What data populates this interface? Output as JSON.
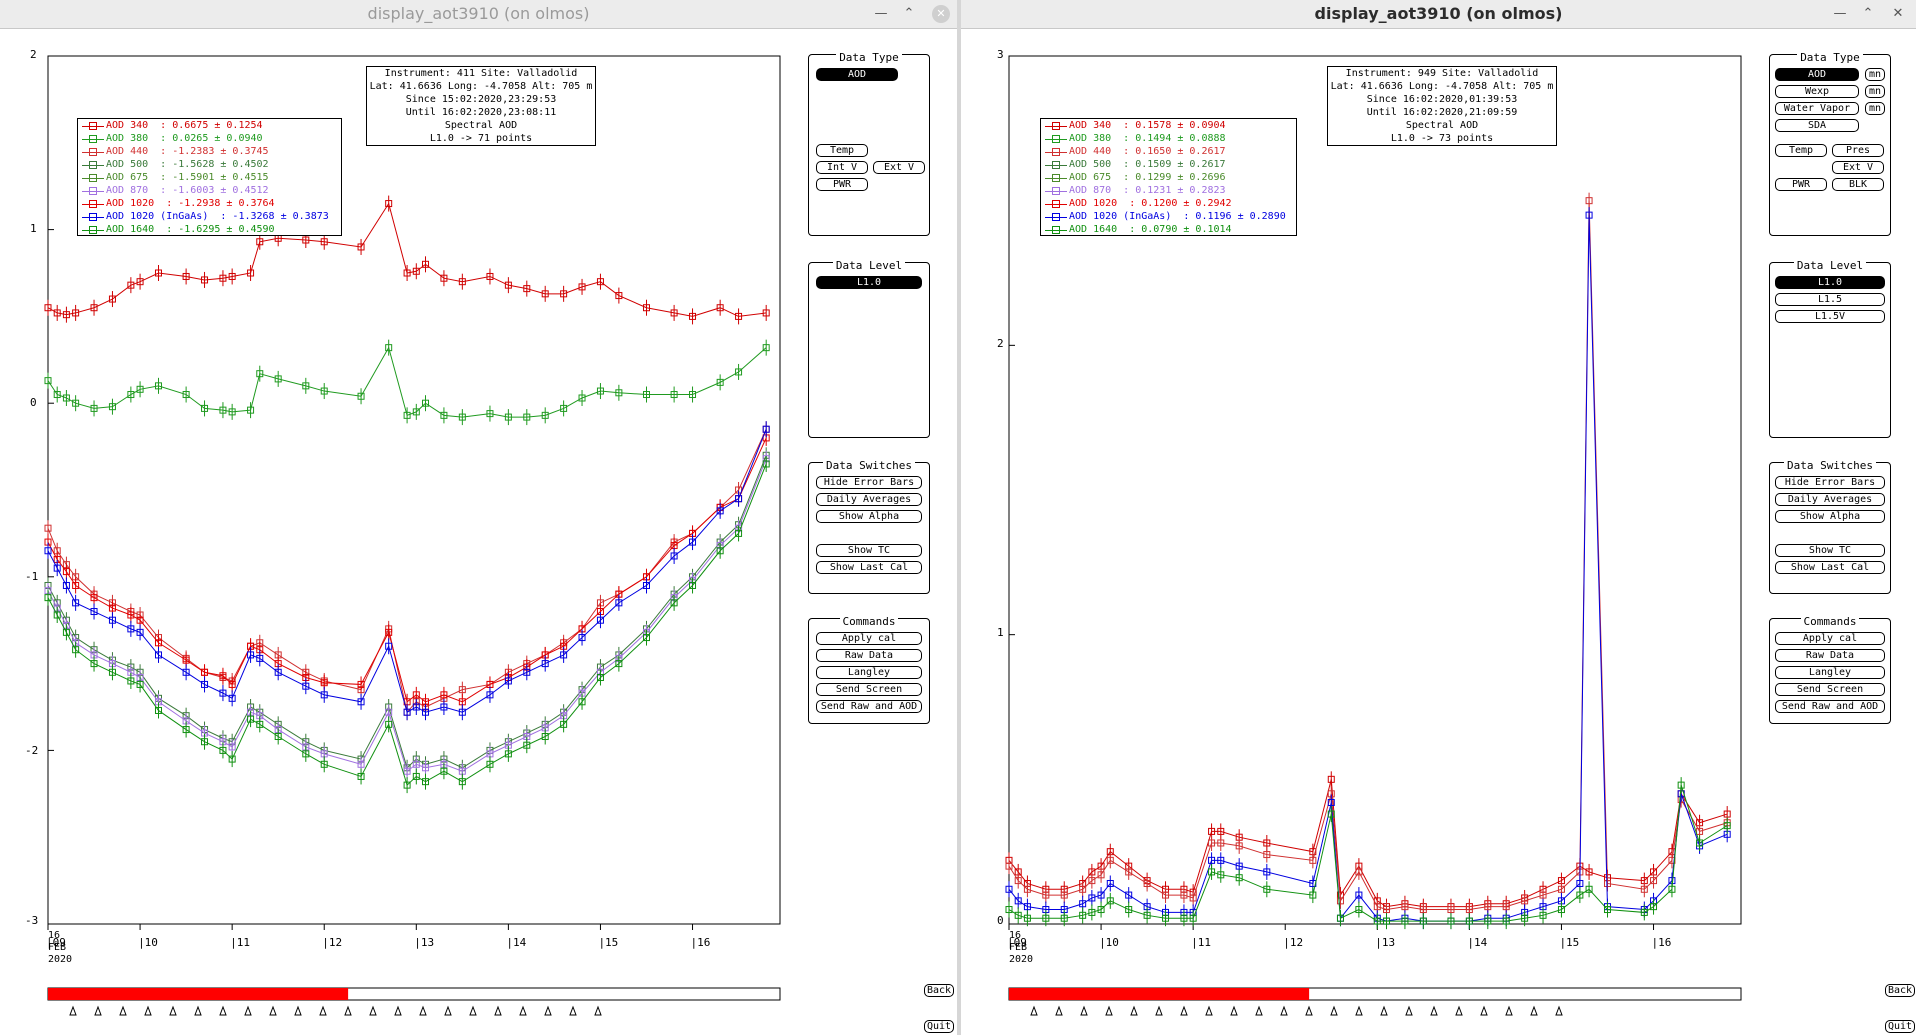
{
  "windows": [
    {
      "title": "display_aot3910 (on olmos)",
      "info": [
        "Instrument: 411 Site: Valladolid",
        "Lat: 41.6636 Long: -4.7058 Alt: 705 m",
        "Since 15:02:2020,23:29:53",
        "Until 16:02:2020,23:08:11",
        "Spectral AOD",
        "L1.0 -> 71 points"
      ],
      "legend": [
        {
          "label": "AOD 340  : 0.6675 ± 0.1254",
          "color": "#d00000"
        },
        {
          "label": "AOD 380  : 0.0265 ± 0.0940",
          "color": "#1f9a1f"
        },
        {
          "label": "AOD 440  : -1.2383 ± 0.3745",
          "color": "#d03030"
        },
        {
          "label": "AOD 500  : -1.5628 ± 0.4502",
          "color": "#3a7a3a"
        },
        {
          "label": "AOD 675  : -1.5901 ± 0.4515",
          "color": "#4a8a2a"
        },
        {
          "label": "AOD 870  : -1.6003 ± 0.4512",
          "color": "#a070e0"
        },
        {
          "label": "AOD 1020  : -1.2938 ± 0.3764",
          "color": "#e00000"
        },
        {
          "label": "AOD 1020 (InGaAs)  : -1.3268 ± 0.3873",
          "color": "#0000e0"
        },
        {
          "label": "AOD 1640  : -1.6295 ± 0.4590",
          "color": "#109010"
        }
      ],
      "y_ticks": [
        "2",
        "1",
        "0",
        "-1",
        "-2",
        "-3"
      ],
      "x_ticks": [
        "|09",
        "|10",
        "|11",
        "|12",
        "|13",
        "|14",
        "|15",
        "|16"
      ],
      "date_label": [
        "16",
        "FEB",
        "2020"
      ],
      "data_type_buttons": [
        "AOD",
        "Temp",
        "Int V",
        "Ext V",
        "PWR"
      ],
      "data_level_buttons": [
        "L1.0"
      ]
    },
    {
      "title": "display_aot3910 (on olmos)",
      "info": [
        "Instrument: 949 Site: Valladolid",
        "Lat: 41.6636 Long: -4.7058 Alt: 705 m",
        "Since 16:02:2020,01:39:53",
        "Until 16:02:2020,21:09:59",
        "Spectral AOD",
        "L1.0 -> 73 points"
      ],
      "legend": [
        {
          "label": "AOD 340  : 0.1578 ± 0.0904",
          "color": "#d00000"
        },
        {
          "label": "AOD 380  : 0.1494 ± 0.0888",
          "color": "#1f9a1f"
        },
        {
          "label": "AOD 440  : 0.1650 ± 0.2617",
          "color": "#d03030"
        },
        {
          "label": "AOD 500  : 0.1509 ± 0.2617",
          "color": "#3a7a3a"
        },
        {
          "label": "AOD 675  : 0.1299 ± 0.2696",
          "color": "#4a8a2a"
        },
        {
          "label": "AOD 870  : 0.1231 ± 0.2823",
          "color": "#a070e0"
        },
        {
          "label": "AOD 1020  : 0.1200 ± 0.2942",
          "color": "#e00000"
        },
        {
          "label": "AOD 1020 (InGaAs)  : 0.1196 ± 0.2890",
          "color": "#0000e0"
        },
        {
          "label": "AOD 1640  : 0.0790 ± 0.1014",
          "color": "#109010"
        }
      ],
      "y_ticks": [
        "3",
        "2",
        "1",
        "0"
      ],
      "x_ticks": [
        "|09",
        "|10",
        "|11",
        "|12",
        "|13",
        "|14",
        "|15",
        "|16"
      ],
      "date_label": [
        "16",
        "FEB",
        "2020"
      ],
      "data_type_buttons": [
        "AOD",
        "Wexp",
        "Water Vapor",
        "SDA",
        "Temp",
        "Pres",
        "Ext V",
        "PWR",
        "BLK"
      ],
      "mn_label": "mn",
      "data_level_buttons": [
        "L1.0",
        "L1.5",
        "L1.5V"
      ]
    }
  ],
  "panels": {
    "data_type": "Data Type",
    "data_level": "Data Level",
    "data_switches": "Data Switches",
    "commands": "Commands"
  },
  "switches": [
    "Hide Error Bars",
    "Daily Averages",
    "Show Alpha",
    "Show TC",
    "Show Last Cal"
  ],
  "commands": [
    "Apply cal",
    "Raw Data",
    "Langley",
    "Send Screen",
    "Send Raw and AOD"
  ],
  "nav": {
    "back": "Back",
    "quit": "Quit"
  },
  "colors": {
    "progress": "#ff0000",
    "plot_border": "#000000"
  },
  "chart_data": [
    {
      "type": "line",
      "title": "",
      "ylim": [
        -3,
        2
      ],
      "x_days": [
        "09",
        "10",
        "11",
        "12",
        "13",
        "14",
        "15",
        "16"
      ],
      "x": [
        9.0,
        9.1,
        9.2,
        9.3,
        9.5,
        9.7,
        9.9,
        10.0,
        10.2,
        10.5,
        10.7,
        10.9,
        11.0,
        11.2,
        11.3,
        11.5,
        11.8,
        12.0,
        12.4,
        12.7,
        12.9,
        13.0,
        13.1,
        13.3,
        13.5,
        13.8,
        14.0,
        14.2,
        14.4,
        14.6,
        14.8,
        15.0,
        15.2,
        15.5,
        15.8,
        16.0,
        16.3,
        16.5,
        16.8
      ],
      "series": [
        {
          "name": "AOD 340",
          "color": "#d00000",
          "values": [
            0.55,
            0.52,
            0.51,
            0.52,
            0.55,
            0.6,
            0.68,
            0.7,
            0.75,
            0.73,
            0.71,
            0.72,
            0.73,
            0.75,
            0.93,
            0.95,
            0.94,
            0.93,
            0.9,
            1.15,
            0.75,
            0.76,
            0.8,
            0.72,
            0.7,
            0.73,
            0.68,
            0.66,
            0.63,
            0.63,
            0.67,
            0.7,
            0.62,
            0.55,
            0.52,
            0.5,
            0.55,
            0.5,
            0.52
          ]
        },
        {
          "name": "AOD 380",
          "color": "#1f9a1f",
          "values": [
            0.13,
            0.05,
            0.03,
            0.0,
            -0.03,
            -0.02,
            0.05,
            0.08,
            0.1,
            0.05,
            -0.03,
            -0.04,
            -0.05,
            -0.04,
            0.17,
            0.14,
            0.1,
            0.07,
            0.04,
            0.32,
            -0.07,
            -0.05,
            0.0,
            -0.07,
            -0.08,
            -0.06,
            -0.08,
            -0.08,
            -0.07,
            -0.03,
            0.03,
            0.07,
            0.06,
            0.05,
            0.05,
            0.05,
            0.12,
            0.18,
            0.32
          ]
        },
        {
          "name": "AOD 440",
          "color": "#d03030",
          "values": [
            -0.72,
            -0.85,
            -0.93,
            -1.0,
            -1.1,
            -1.15,
            -1.2,
            -1.22,
            -1.35,
            -1.47,
            -1.55,
            -1.58,
            -1.6,
            -1.4,
            -1.38,
            -1.45,
            -1.55,
            -1.6,
            -1.65,
            -1.3,
            -1.78,
            -1.72,
            -1.75,
            -1.7,
            -1.65,
            -1.62,
            -1.55,
            -1.5,
            -1.45,
            -1.38,
            -1.3,
            -1.15,
            -1.1,
            -1.0,
            -0.8,
            -0.75,
            -0.6,
            -0.5,
            -0.15
          ]
        },
        {
          "name": "AOD 1020",
          "color": "#e00000",
          "values": [
            -0.8,
            -0.9,
            -0.97,
            -1.05,
            -1.12,
            -1.18,
            -1.22,
            -1.25,
            -1.38,
            -1.48,
            -1.55,
            -1.57,
            -1.62,
            -1.4,
            -1.42,
            -1.5,
            -1.58,
            -1.61,
            -1.62,
            -1.32,
            -1.72,
            -1.68,
            -1.72,
            -1.68,
            -1.72,
            -1.62,
            -1.58,
            -1.52,
            -1.45,
            -1.4,
            -1.3,
            -1.2,
            -1.1,
            -1.0,
            -0.82,
            -0.75,
            -0.6,
            -0.55,
            -0.2
          ]
        },
        {
          "name": "AOD 1020 (InGaAs)",
          "color": "#0000e0",
          "values": [
            -0.85,
            -0.95,
            -1.05,
            -1.15,
            -1.2,
            -1.25,
            -1.3,
            -1.32,
            -1.45,
            -1.55,
            -1.62,
            -1.67,
            -1.7,
            -1.45,
            -1.47,
            -1.55,
            -1.63,
            -1.68,
            -1.72,
            -1.4,
            -1.78,
            -1.75,
            -1.78,
            -1.75,
            -1.78,
            -1.68,
            -1.6,
            -1.55,
            -1.5,
            -1.45,
            -1.35,
            -1.25,
            -1.15,
            -1.05,
            -0.88,
            -0.8,
            -0.62,
            -0.55,
            -0.15
          ]
        },
        {
          "name": "AOD 500",
          "color": "#3a7a3a",
          "values": [
            -1.05,
            -1.15,
            -1.25,
            -1.35,
            -1.42,
            -1.48,
            -1.52,
            -1.55,
            -1.7,
            -1.8,
            -1.88,
            -1.93,
            -1.95,
            -1.75,
            -1.78,
            -1.85,
            -1.95,
            -2.0,
            -2.05,
            -1.75,
            -2.1,
            -2.05,
            -2.08,
            -2.05,
            -2.1,
            -2.0,
            -1.95,
            -1.9,
            -1.85,
            -1.78,
            -1.65,
            -1.52,
            -1.45,
            -1.3,
            -1.1,
            -1.0,
            -0.8,
            -0.7,
            -0.3
          ]
        },
        {
          "name": "AOD 870",
          "color": "#a070e0",
          "values": [
            -1.08,
            -1.18,
            -1.28,
            -1.38,
            -1.45,
            -1.5,
            -1.55,
            -1.58,
            -1.72,
            -1.83,
            -1.9,
            -1.95,
            -1.98,
            -1.78,
            -1.8,
            -1.88,
            -1.98,
            -2.02,
            -2.08,
            -1.78,
            -2.12,
            -2.08,
            -2.1,
            -2.08,
            -2.12,
            -2.02,
            -1.97,
            -1.92,
            -1.87,
            -1.8,
            -1.67,
            -1.55,
            -1.47,
            -1.32,
            -1.12,
            -1.02,
            -0.82,
            -0.72,
            -0.32
          ]
        },
        {
          "name": "AOD 1640",
          "color": "#109010",
          "values": [
            -1.12,
            -1.22,
            -1.32,
            -1.42,
            -1.5,
            -1.55,
            -1.6,
            -1.62,
            -1.77,
            -1.88,
            -1.95,
            -2.0,
            -2.05,
            -1.82,
            -1.85,
            -1.92,
            -2.02,
            -2.08,
            -2.15,
            -1.85,
            -2.2,
            -2.15,
            -2.18,
            -2.12,
            -2.18,
            -2.08,
            -2.02,
            -1.97,
            -1.92,
            -1.85,
            -1.72,
            -1.58,
            -1.5,
            -1.35,
            -1.15,
            -1.05,
            -0.85,
            -0.75,
            -0.35
          ]
        }
      ]
    },
    {
      "type": "line",
      "title": "",
      "ylim": [
        0,
        3
      ],
      "x_days": [
        "09",
        "10",
        "11",
        "12",
        "13",
        "14",
        "15",
        "16"
      ],
      "x": [
        9.0,
        9.1,
        9.2,
        9.4,
        9.6,
        9.8,
        9.9,
        10.0,
        10.1,
        10.3,
        10.5,
        10.7,
        10.9,
        11.0,
        11.2,
        11.3,
        11.5,
        11.8,
        12.3,
        12.5,
        12.6,
        12.8,
        13.0,
        13.1,
        13.3,
        13.5,
        13.8,
        14.0,
        14.2,
        14.4,
        14.6,
        14.8,
        15.0,
        15.2,
        15.3,
        15.5,
        15.9,
        16.0,
        16.2,
        16.3,
        16.5,
        16.8
      ],
      "series": [
        {
          "name": "AOD 340",
          "color": "#d00000",
          "values": [
            0.22,
            0.18,
            0.14,
            0.12,
            0.12,
            0.14,
            0.18,
            0.2,
            0.25,
            0.2,
            0.15,
            0.12,
            0.12,
            0.11,
            0.32,
            0.32,
            0.3,
            0.28,
            0.25,
            0.5,
            0.1,
            0.2,
            0.08,
            0.06,
            0.07,
            0.06,
            0.06,
            0.06,
            0.07,
            0.07,
            0.09,
            0.12,
            0.15,
            0.2,
            0.18,
            0.16,
            0.15,
            0.18,
            0.25,
            0.45,
            0.35,
            0.38
          ]
        },
        {
          "name": "AOD 440",
          "color": "#d03030",
          "values": [
            0.2,
            0.15,
            0.12,
            0.1,
            0.1,
            0.12,
            0.15,
            0.17,
            0.22,
            0.18,
            0.14,
            0.1,
            0.1,
            0.09,
            0.28,
            0.28,
            0.27,
            0.24,
            0.22,
            0.45,
            0.08,
            0.18,
            0.06,
            0.05,
            0.06,
            0.05,
            0.05,
            0.05,
            0.06,
            0.06,
            0.08,
            0.1,
            0.12,
            0.18,
            2.5,
            0.14,
            0.12,
            0.15,
            0.22,
            0.43,
            0.32,
            0.35
          ]
        },
        {
          "name": "AOD 1020 (InGaAs)",
          "color": "#0000e0",
          "values": [
            0.12,
            0.08,
            0.06,
            0.05,
            0.05,
            0.07,
            0.09,
            0.1,
            0.14,
            0.1,
            0.06,
            0.04,
            0.04,
            0.04,
            0.22,
            0.22,
            0.2,
            0.18,
            0.14,
            0.42,
            0.02,
            0.1,
            0.02,
            0.01,
            0.02,
            0.01,
            0.01,
            0.01,
            0.02,
            0.02,
            0.04,
            0.06,
            0.08,
            0.14,
            2.45,
            0.06,
            0.05,
            0.08,
            0.15,
            0.45,
            0.27,
            0.31
          ]
        },
        {
          "name": "AOD 1640",
          "color": "#109010",
          "values": [
            0.05,
            0.03,
            0.02,
            0.02,
            0.02,
            0.03,
            0.04,
            0.05,
            0.08,
            0.05,
            0.03,
            0.02,
            0.02,
            0.02,
            0.18,
            0.17,
            0.16,
            0.12,
            0.1,
            0.38,
            0.02,
            0.05,
            0.01,
            0.01,
            0.01,
            0.01,
            0.01,
            0.01,
            0.01,
            0.01,
            0.02,
            0.03,
            0.05,
            0.1,
            0.12,
            0.05,
            0.04,
            0.06,
            0.12,
            0.48,
            0.28,
            0.34
          ]
        }
      ]
    }
  ]
}
